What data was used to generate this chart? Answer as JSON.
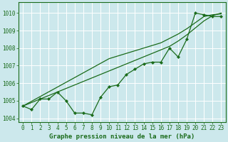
{
  "xlabel": "Graphe pression niveau de la mer (hPa)",
  "bg_color": "#cce8ec",
  "grid_color": "#ffffff",
  "line_color": "#1a6b1a",
  "ylim": [
    1003.8,
    1010.6
  ],
  "xlim": [
    -0.5,
    23.5
  ],
  "yticks": [
    1004,
    1005,
    1006,
    1007,
    1008,
    1009,
    1010
  ],
  "xticks": [
    0,
    1,
    2,
    3,
    4,
    5,
    6,
    7,
    8,
    9,
    10,
    11,
    12,
    13,
    14,
    15,
    16,
    17,
    18,
    19,
    20,
    21,
    22,
    23
  ],
  "series_measured": [
    1004.7,
    1004.5,
    1005.1,
    1005.1,
    1005.5,
    1005.0,
    1004.3,
    1004.3,
    1004.2,
    1005.2,
    1005.8,
    1005.9,
    1006.5,
    1006.8,
    1007.1,
    1007.2,
    1007.2,
    1008.0,
    1007.5,
    1008.5,
    1010.0,
    1009.9,
    1009.8,
    1009.8
  ],
  "series_ref1": [
    1004.7,
    1004.97,
    1005.24,
    1005.51,
    1005.78,
    1006.05,
    1006.32,
    1006.59,
    1006.86,
    1007.13,
    1007.4,
    1007.55,
    1007.7,
    1007.85,
    1008.0,
    1008.15,
    1008.3,
    1008.55,
    1008.8,
    1009.1,
    1009.45,
    1009.8,
    1009.9,
    1009.95
  ],
  "series_ref2": [
    1004.7,
    1004.9,
    1005.1,
    1005.3,
    1005.5,
    1005.7,
    1005.9,
    1006.1,
    1006.3,
    1006.5,
    1006.7,
    1006.9,
    1007.1,
    1007.3,
    1007.5,
    1007.7,
    1007.9,
    1008.1,
    1008.4,
    1008.75,
    1009.15,
    1009.55,
    1009.85,
    1010.0
  ],
  "font_family": "monospace",
  "tick_fontsize": 5.5,
  "label_fontsize": 6.5
}
